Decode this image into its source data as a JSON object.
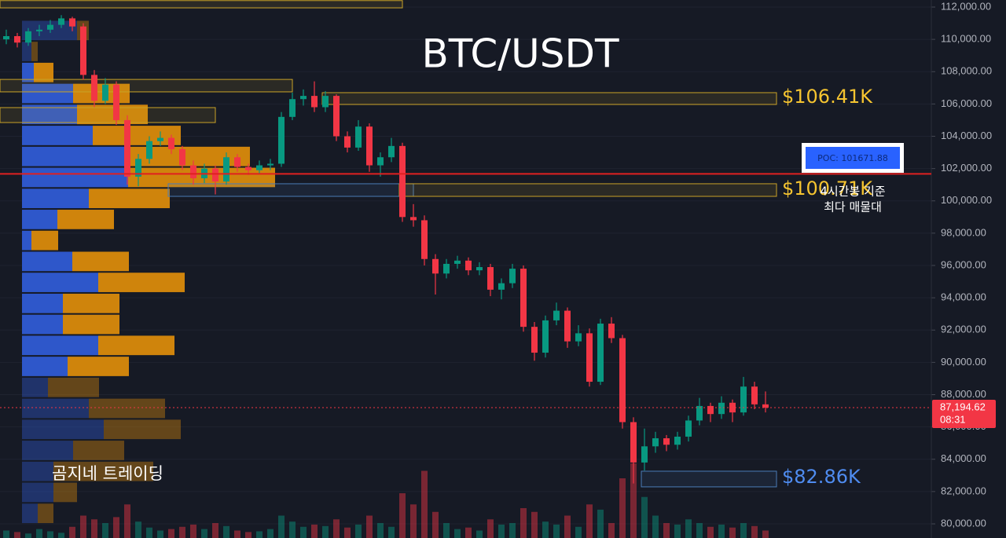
{
  "chart_data": {
    "type": "candlestick",
    "title": "BTC/USDT",
    "watermark": "곰지네 트레이딩",
    "ylim": [
      80000,
      112000
    ],
    "grid": true,
    "up_color": "#089981",
    "down_color": "#f23645",
    "yticks": [
      {
        "value": 80000,
        "label": "80,000.00"
      },
      {
        "value": 82000,
        "label": "82,000.00"
      },
      {
        "value": 84000,
        "label": "84,000.00"
      },
      {
        "value": 86000,
        "label": "86,000.00"
      },
      {
        "value": 88000,
        "label": "88,000.00"
      },
      {
        "value": 90000,
        "label": "90,000.00"
      },
      {
        "value": 92000,
        "label": "92,000.00"
      },
      {
        "value": 94000,
        "label": "94,000.00"
      },
      {
        "value": 96000,
        "label": "96,000.00"
      },
      {
        "value": 98000,
        "label": "98,000.00"
      },
      {
        "value": 100000,
        "label": "100,000.00"
      },
      {
        "value": 102000,
        "label": "102,000.00"
      },
      {
        "value": 104000,
        "label": "104,000.00"
      },
      {
        "value": 106000,
        "label": "106,000.00"
      },
      {
        "value": 108000,
        "label": "108,000.00"
      },
      {
        "value": 110000,
        "label": "110,000.00"
      },
      {
        "value": 112000,
        "label": "112,000.00"
      }
    ],
    "candles": [
      [
        110000,
        110600,
        109700,
        110200
      ],
      [
        110200,
        110400,
        109500,
        109800
      ],
      [
        109800,
        110700,
        109600,
        110500
      ],
      [
        110500,
        110900,
        110200,
        110600
      ],
      [
        110600,
        111200,
        110400,
        110900
      ],
      [
        110900,
        111500,
        110700,
        111300
      ],
      [
        111300,
        111400,
        110500,
        110800
      ],
      [
        110800,
        111000,
        107500,
        107800
      ],
      [
        107800,
        108100,
        105800,
        106200
      ],
      [
        106200,
        107600,
        106000,
        107200
      ],
      [
        107200,
        107400,
        104700,
        105000
      ],
      [
        105000,
        105300,
        101000,
        101500
      ],
      [
        101500,
        102900,
        100900,
        102600
      ],
      [
        102600,
        104000,
        102300,
        103700
      ],
      [
        103700,
        104300,
        103400,
        103900
      ],
      [
        103900,
        104100,
        102900,
        103200
      ],
      [
        103200,
        103400,
        101900,
        102200
      ],
      [
        102200,
        102500,
        101000,
        101400
      ],
      [
        101400,
        102300,
        101100,
        102000
      ],
      [
        102000,
        102200,
        100400,
        101200
      ],
      [
        101200,
        103000,
        101000,
        102700
      ],
      [
        102700,
        102900,
        101800,
        102100
      ],
      [
        102100,
        102300,
        101600,
        101900
      ],
      [
        101900,
        102500,
        101700,
        102200
      ],
      [
        102200,
        102600,
        101900,
        102300
      ],
      [
        102300,
        105500,
        102100,
        105200
      ],
      [
        105200,
        106700,
        105000,
        106300
      ],
      [
        106300,
        106900,
        105900,
        106500
      ],
      [
        106500,
        107400,
        105500,
        105800
      ],
      [
        105800,
        106800,
        105500,
        106500
      ],
      [
        106500,
        106600,
        103700,
        104000
      ],
      [
        104000,
        104300,
        103000,
        103300
      ],
      [
        103300,
        105000,
        103100,
        104600
      ],
      [
        104600,
        104800,
        101800,
        102200
      ],
      [
        102200,
        103000,
        101500,
        102700
      ],
      [
        102700,
        103900,
        102400,
        103400
      ],
      [
        103400,
        103600,
        98700,
        99000
      ],
      [
        99000,
        99800,
        98400,
        98800
      ],
      [
        98800,
        99100,
        96000,
        96400
      ],
      [
        96400,
        96700,
        94200,
        95500
      ],
      [
        95500,
        96400,
        95200,
        96100
      ],
      [
        96100,
        96600,
        95800,
        96300
      ],
      [
        96300,
        96500,
        95400,
        95700
      ],
      [
        95700,
        96200,
        95400,
        95900
      ],
      [
        95900,
        96100,
        94100,
        94500
      ],
      [
        94500,
        95200,
        93900,
        94900
      ],
      [
        94900,
        96100,
        94600,
        95800
      ],
      [
        95800,
        96000,
        91900,
        92200
      ],
      [
        92200,
        92500,
        90100,
        90600
      ],
      [
        90600,
        92900,
        90300,
        92600
      ],
      [
        92600,
        93700,
        92300,
        93200
      ],
      [
        93200,
        93400,
        90900,
        91300
      ],
      [
        91300,
        92300,
        91000,
        91800
      ],
      [
        91800,
        92100,
        88500,
        88800
      ],
      [
        88800,
        92700,
        88600,
        92400
      ],
      [
        92400,
        92800,
        91200,
        91500
      ],
      [
        91500,
        91700,
        85900,
        86300
      ],
      [
        86300,
        86600,
        82500,
        83800
      ],
      [
        83800,
        85900,
        83300,
        84800
      ],
      [
        84800,
        85700,
        84400,
        85300
      ],
      [
        85300,
        85500,
        84500,
        84900
      ],
      [
        84900,
        85700,
        84600,
        85400
      ],
      [
        85400,
        86700,
        85100,
        86400
      ],
      [
        86400,
        87800,
        86100,
        87300
      ],
      [
        87300,
        87500,
        86300,
        86800
      ],
      [
        86800,
        87900,
        86500,
        87500
      ],
      [
        87500,
        87700,
        86300,
        86900
      ],
      [
        86900,
        89100,
        86700,
        88500
      ],
      [
        88500,
        88800,
        87100,
        87400
      ],
      [
        87400,
        88200,
        86900,
        87195
      ]
    ],
    "volume_ylim": [
      0,
      100
    ],
    "volumes": [
      10,
      8,
      6,
      12,
      9,
      7,
      15,
      30,
      25,
      20,
      28,
      45,
      22,
      14,
      10,
      12,
      15,
      18,
      12,
      20,
      16,
      10,
      8,
      9,
      12,
      30,
      22,
      15,
      18,
      16,
      25,
      14,
      18,
      30,
      20,
      15,
      60,
      45,
      90,
      35,
      20,
      12,
      14,
      10,
      25,
      18,
      20,
      40,
      35,
      22,
      18,
      30,
      15,
      45,
      38,
      20,
      80,
      100,
      55,
      30,
      20,
      18,
      25,
      20,
      15,
      18,
      14,
      20,
      16,
      10
    ],
    "volume_profile": {
      "xlim": [
        0,
        1000
      ],
      "buy_color": "#2f5bd3",
      "sell_color": "#d98a0b",
      "value_area": [
        89100,
        108600
      ],
      "bins": [
        80000,
        81300,
        82600,
        83900,
        85200,
        86500,
        87800,
        89100,
        90400,
        91700,
        93000,
        94300,
        95600,
        96900,
        98200,
        99500,
        100800,
        102100,
        103400,
        104700,
        106000,
        107300,
        108600,
        109900,
        111200
      ],
      "buy": [
        20,
        40,
        40,
        65,
        104,
        85,
        33,
        58,
        97,
        52,
        52,
        97,
        64,
        12,
        45,
        85,
        135,
        135,
        90,
        70,
        65,
        15,
        12,
        70
      ],
      "sell": [
        20,
        30,
        127,
        65,
        98,
        97,
        65,
        78,
        97,
        72,
        72,
        110,
        72,
        34,
        72,
        103,
        187,
        155,
        112,
        90,
        72,
        25,
        8,
        15
      ]
    },
    "zones": [
      {
        "low": 111950,
        "high": 112400,
        "start": 0,
        "end": 35,
        "color": "#c9a227"
      },
      {
        "low": 106750,
        "high": 107520,
        "start": 0,
        "end": 25,
        "color": "#c9a227"
      },
      {
        "low": 104850,
        "high": 105775,
        "start": 0,
        "end": 18,
        "color": "#c9a227"
      },
      {
        "low": 105970,
        "high": 106700,
        "start": 29,
        "end": 69,
        "color": "#c9a227",
        "level": 106410,
        "label": "$106.41K"
      },
      {
        "low": 100280,
        "high": 101060,
        "start": 15,
        "end": 36,
        "color": "#4a7bb7"
      },
      {
        "low": 100280,
        "high": 101060,
        "start": 36,
        "end": 69,
        "color": "#c9a227",
        "level": 100710,
        "label": "$100.71K"
      },
      {
        "low": 82290,
        "high": 83260,
        "start": 58,
        "end": 69,
        "color": "#4a7bb7",
        "level": 82860,
        "label": "$82.86K"
      }
    ],
    "poc": {
      "value": 101671.88,
      "label": "POC: 101671.88",
      "color": "#e02020"
    },
    "annotation": [
      "4시간봉 기준",
      "최다 매물대"
    ],
    "last_price": {
      "value": 87194.62,
      "label": "87,194.62",
      "countdown": "08:31"
    }
  }
}
